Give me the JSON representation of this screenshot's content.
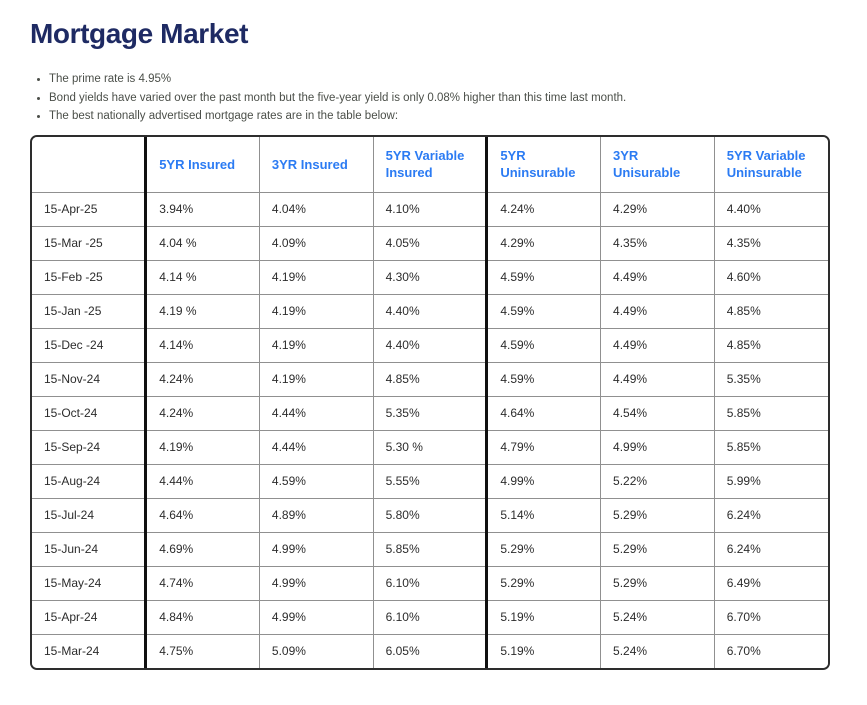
{
  "title": "Mortgage Market",
  "bullets": [
    "The prime rate is 4.95%",
    "Bond yields have varied over the past month but the five-year yield is only 0.08% higher than this time last month.",
    "The best nationally advertised mortgage rates are in the table below:"
  ],
  "colors": {
    "title_text": "#1E2A63",
    "header_text": "#2B7BF3",
    "body_text": "#4B4F49",
    "grid_line": "#909090",
    "thick_separator": "#101010",
    "outer_border": "#2D2D2D"
  },
  "table": {
    "columns": [
      "",
      "5YR Insured",
      "3YR Insured",
      "5YR Variable Insured",
      "5YR Uninsurable",
      "3YR Unisurable",
      "5YR Variable Uninsurable"
    ],
    "rows": [
      [
        "15-Apr-25",
        "3.94%",
        "4.04%",
        "4.10%",
        "4.24%",
        "4.29%",
        "4.40%"
      ],
      [
        "15-Mar -25",
        "4.04 %",
        "4.09%",
        "4.05%",
        "4.29%",
        "4.35%",
        "4.35%"
      ],
      [
        "15-Feb -25",
        "4.14 %",
        "4.19%",
        "4.30%",
        "4.59%",
        "4.49%",
        "4.60%"
      ],
      [
        "15-Jan -25",
        "4.19 %",
        "4.19%",
        "4.40%",
        "4.59%",
        "4.49%",
        "4.85%"
      ],
      [
        "15-Dec -24",
        "4.14%",
        "4.19%",
        "4.40%",
        "4.59%",
        "4.49%",
        "4.85%"
      ],
      [
        "15-Nov-24",
        "4.24%",
        "4.19%",
        "4.85%",
        "4.59%",
        "4.49%",
        "5.35%"
      ],
      [
        "15-Oct-24",
        "4.24%",
        "4.44%",
        "5.35%",
        "4.64%",
        "4.54%",
        "5.85%"
      ],
      [
        "15-Sep-24",
        "4.19%",
        "4.44%",
        "5.30 %",
        "4.79%",
        "4.99%",
        "5.85%"
      ],
      [
        "15-Aug-24",
        "4.44%",
        "4.59%",
        "5.55%",
        "4.99%",
        "5.22%",
        "5.99%"
      ],
      [
        "15-Jul-24",
        "4.64%",
        "4.89%",
        "5.80%",
        "5.14%",
        "5.29%",
        "6.24%"
      ],
      [
        "15-Jun-24",
        "4.69%",
        "4.99%",
        "5.85%",
        "5.29%",
        "5.29%",
        "6.24%"
      ],
      [
        "15-May-24",
        "4.74%",
        "4.99%",
        "6.10%",
        "5.29%",
        "5.29%",
        "6.49%"
      ],
      [
        "15-Apr-24",
        "4.84%",
        "4.99%",
        "6.10%",
        "5.19%",
        "5.24%",
        "6.70%"
      ],
      [
        "15-Mar-24",
        "4.75%",
        "5.09%",
        "6.05%",
        "5.19%",
        "5.24%",
        "6.70%"
      ]
    ]
  }
}
